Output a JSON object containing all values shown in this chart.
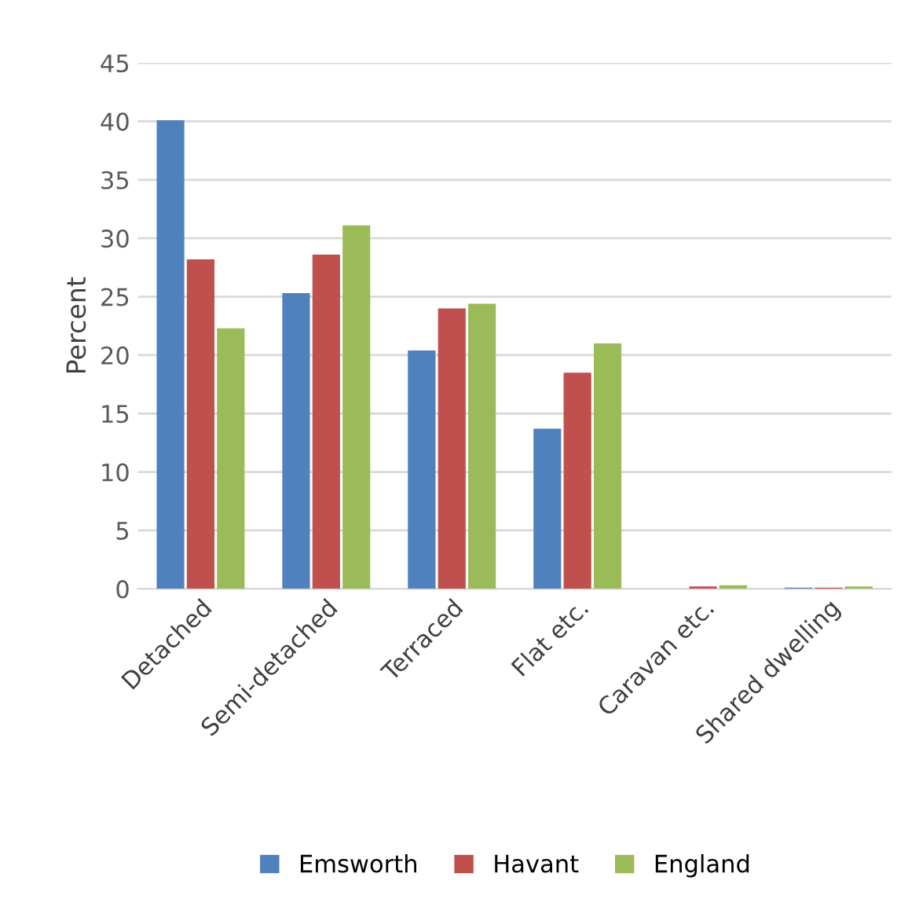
{
  "chart_data": {
    "type": "bar",
    "ylabel": "Percent",
    "categories": [
      "Detached",
      "Semi-detached",
      "Terraced",
      "Flat etc.",
      "Caravan etc.",
      "Shared dwelling"
    ],
    "series": [
      {
        "name": "Emsworth",
        "color": "#4f81bd",
        "values": [
          40.1,
          25.3,
          20.4,
          13.7,
          0.0,
          0.1
        ]
      },
      {
        "name": "Havant",
        "color": "#c0504d",
        "values": [
          28.2,
          28.6,
          24.0,
          18.5,
          0.2,
          0.1
        ]
      },
      {
        "name": "England",
        "color": "#9bbb59",
        "values": [
          22.3,
          31.1,
          24.4,
          21.0,
          0.3,
          0.2
        ]
      }
    ],
    "ylim": [
      0,
      45
    ],
    "yticks": [
      0,
      5,
      10,
      15,
      20,
      25,
      30,
      35,
      40,
      45
    ],
    "grid": "y",
    "legend": "bottom"
  }
}
